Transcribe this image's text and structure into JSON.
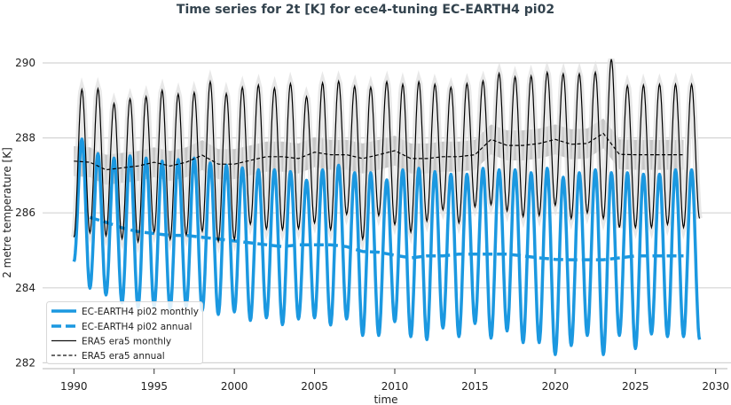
{
  "chart_data": {
    "type": "line",
    "title": "Time series for 2t [K] for ece4-tuning EC-EARTH4 pi02",
    "xlabel": "time",
    "ylabel": "2 metre temperature [K]",
    "xlim": [
      1988,
      2031
    ],
    "ylim": [
      281.8,
      290.6
    ],
    "xticks": [
      "1990",
      "1995",
      "2000",
      "2005",
      "2010",
      "2015",
      "2020",
      "2025",
      "2030"
    ],
    "yticks": [
      "282",
      "284",
      "286",
      "288",
      "290"
    ],
    "grid": "horizontal",
    "legend_position": "bottom-left",
    "colors": {
      "ec_earth": "#1b98e0",
      "era5": "#000000",
      "era5_band": "#c8c8c8",
      "era5_monthly_band": "#e2e2e2"
    },
    "series": [
      {
        "name": "EC-EARTH4 pi02 monthly",
        "style": "solid-thick",
        "seasonal_cycle": {
          "january_values_1990_to_2029": [
            284.7,
            283.99,
            283.81,
            283.6,
            283.48,
            283.5,
            283.44,
            283.5,
            283.4,
            283.29,
            283.36,
            283.13,
            283.2,
            283.02,
            283.17,
            283.2,
            283.01,
            283.17,
            282.73,
            282.73,
            283.1,
            282.7,
            282.62,
            282.93,
            282.7,
            283.05,
            282.66,
            282.85,
            282.54,
            282.54,
            282.22,
            282.46,
            282.73,
            282.22,
            282.73,
            282.38,
            282.77,
            282.7,
            282.7,
            282.62
          ],
          "july_values_1990_to_2028": [
            287.97,
            287.58,
            287.46,
            287.52,
            287.46,
            287.38,
            287.42,
            287.46,
            287.33,
            287.27,
            287.2,
            287.15,
            287.15,
            287.1,
            286.87,
            287.15,
            287.27,
            287.07,
            287.07,
            286.88,
            287.15,
            287.19,
            287.1,
            287.03,
            287.03,
            287.19,
            287.15,
            287.15,
            287.07,
            287.19,
            286.95,
            287.07,
            287.15,
            287.07,
            287.07,
            287.03,
            287.03,
            287.15,
            287.15
          ]
        }
      },
      {
        "name": "EC-EARTH4 pi02 annual",
        "style": "dashed-thick",
        "x": [
          1991,
          1992,
          1993,
          1994,
          1995,
          1996,
          1997,
          1998,
          1999,
          2000,
          2001,
          2002,
          2003,
          2004,
          2005,
          2006,
          2007,
          2008,
          2009,
          2010,
          2011,
          2012,
          2013,
          2014,
          2015,
          2016,
          2017,
          2018,
          2019,
          2020,
          2021,
          2022,
          2023,
          2024,
          2025,
          2026,
          2027,
          2028
        ],
        "y": [
          285.88,
          285.75,
          285.6,
          285.5,
          285.45,
          285.4,
          285.4,
          285.35,
          285.3,
          285.25,
          285.2,
          285.15,
          285.1,
          285.15,
          285.15,
          285.15,
          285.1,
          284.97,
          284.95,
          284.87,
          284.8,
          284.85,
          284.85,
          284.9,
          284.9,
          284.9,
          284.9,
          284.85,
          284.8,
          284.76,
          284.75,
          284.75,
          284.75,
          284.8,
          284.85,
          284.85,
          284.85,
          284.85
        ]
      },
      {
        "name": "ERA5 era5 monthly",
        "style": "solid-thin",
        "seasonal_cycle": {
          "january_values_1990_to_2029": [
            285.35,
            285.47,
            285.39,
            285.31,
            285.23,
            285.49,
            285.29,
            285.41,
            285.51,
            285.24,
            285.29,
            285.7,
            285.57,
            285.55,
            285.58,
            285.73,
            285.55,
            285.96,
            285.3,
            285.93,
            285.69,
            285.49,
            285.78,
            286.08,
            285.73,
            286.16,
            286.22,
            286.05,
            285.9,
            285.93,
            286.2,
            285.85,
            286.0,
            285.85,
            285.61,
            285.61,
            285.61,
            285.69,
            285.61,
            285.85
          ],
          "july_values_1990_to_2028": [
            289.29,
            289.31,
            288.92,
            289.04,
            289.1,
            289.27,
            289.17,
            289.21,
            289.5,
            289.18,
            289.35,
            289.41,
            289.33,
            289.45,
            289.1,
            289.47,
            289.51,
            289.38,
            289.35,
            289.5,
            289.43,
            289.5,
            289.43,
            289.35,
            289.45,
            289.52,
            289.72,
            289.63,
            289.65,
            289.75,
            289.71,
            289.71,
            289.75,
            290.1,
            289.39,
            289.41,
            289.43,
            289.43,
            289.43
          ]
        }
      },
      {
        "name": "ERA5 era5 annual",
        "style": "dashed-thin",
        "x": [
          1990,
          1991,
          1992,
          1993,
          1994,
          1995,
          1996,
          1997,
          1998,
          1999,
          2000,
          2001,
          2002,
          2003,
          2004,
          2005,
          2006,
          2007,
          2008,
          2009,
          2010,
          2011,
          2012,
          2013,
          2014,
          2015,
          2016,
          2017,
          2018,
          2019,
          2020,
          2021,
          2022,
          2023,
          2024,
          2025,
          2026,
          2027,
          2028
        ],
        "y": [
          287.38,
          287.35,
          287.15,
          287.2,
          287.25,
          287.35,
          287.25,
          287.35,
          287.54,
          287.3,
          287.3,
          287.4,
          287.5,
          287.5,
          287.45,
          287.62,
          287.55,
          287.55,
          287.45,
          287.55,
          287.66,
          287.45,
          287.45,
          287.5,
          287.5,
          287.55,
          287.96,
          287.8,
          287.8,
          287.85,
          287.96,
          287.83,
          287.85,
          288.12,
          287.56,
          287.55,
          287.55,
          287.55,
          287.55
        ],
        "band_halfwidth": 0.4
      }
    ]
  }
}
